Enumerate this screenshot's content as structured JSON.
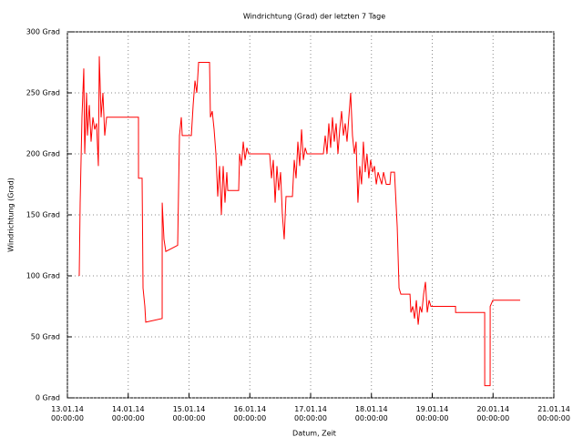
{
  "chart_data": {
    "type": "line",
    "title": "Windrichtung (Grad) der letzten 7 Tage",
    "xlabel": "Datum, Zeit",
    "ylabel": "Windrichtung (Grad)",
    "grid": true,
    "xlim": [
      "13.01.14 00:00:00",
      "21.01.14 00:00:00"
    ],
    "xticks": [
      "13.01.14 00:00:00",
      "14.01.14 00:00:00",
      "15.01.14 00:00:00",
      "16.01.14 00:00:00",
      "17.01.14 00:00:00",
      "18.01.14 00:00:00",
      "19.01.14 00:00:00",
      "20.01.14 00:00:00",
      "21.01.14 00:00:00"
    ],
    "ylim": [
      0,
      300
    ],
    "yticks": [
      {
        "value": 0,
        "label": "0 Grad"
      },
      {
        "value": 50,
        "label": "50 Grad"
      },
      {
        "value": 100,
        "label": "100 Grad"
      },
      {
        "value": 150,
        "label": "150 Grad"
      },
      {
        "value": 200,
        "label": "200 Grad"
      },
      {
        "value": 250,
        "label": "250 Grad"
      },
      {
        "value": 300,
        "label": "300 Grad"
      }
    ],
    "x": [
      "13.01.14 04:40:00",
      "13.01.14 05:02:00",
      "13.01.14 05:45:00",
      "13.01.14 06:28:00",
      "13.01.14 06:50:00",
      "13.01.14 07:33:00",
      "13.01.14 07:55:00",
      "13.01.14 08:38:00",
      "13.01.14 09:21:00",
      "13.01.14 10:04:00",
      "13.01.14 10:47:00",
      "13.01.14 11:30:00",
      "13.01.14 12:13:00",
      "13.01.14 12:35:00",
      "13.01.14 13:18:00",
      "13.01.14 14:01:00",
      "13.01.14 14:44:00",
      "13.01.14 15:28:00",
      "13.01.14 16:32:00",
      "14.01.14 04:03:00",
      "14.01.14 04:04:00",
      "14.01.14 05:29:00",
      "14.01.14 05:51:00",
      "14.01.14 06:34:00",
      "14.01.14 06:55:00",
      "14.01.14 13:24:00",
      "14.01.14 13:25:00",
      "14.01.14 14:07:00",
      "14.01.14 14:50:00",
      "14.01.14 19:31:00",
      "14.01.14 20:14:00",
      "14.01.14 20:57:00",
      "14.01.14 21:19:00",
      "15.01.14 00:55:00",
      "15.01.14 01:38:00",
      "15.01.14 02:21:00",
      "15.01.14 03:04:00",
      "15.01.14 03:47:00",
      "15.01.14 08:06:00",
      "15.01.14 08:27:00",
      "15.01.14 09:10:00",
      "15.01.14 09:54:00",
      "15.01.14 10:37:00",
      "15.01.14 11:20:00",
      "15.01.14 12:03:00",
      "15.01.14 12:46:00",
      "15.01.14 13:29:00",
      "15.01.14 14:12:00",
      "15.01.14 14:55:00",
      "15.01.14 15:17:00",
      "15.01.14 19:36:00",
      "15.01.14 19:58:00",
      "15.01.14 20:41:00",
      "15.01.14 21:24:00",
      "15.01.14 22:07:00",
      "15.01.14 22:50:00",
      "15.01.14 23:34:00",
      "16.01.14 07:50:00",
      "16.01.14 08:33:00",
      "16.01.14 09:16:00",
      "16.01.14 09:59:00",
      "16.01.14 10:42:00",
      "16.01.14 11:25:00",
      "16.01.14 12:08:00",
      "16.01.14 12:51:00",
      "16.01.14 13:34:00",
      "16.01.14 14:17:00",
      "16.01.14 16:49:00",
      "16.01.14 17:32:00",
      "16.01.14 18:15:00",
      "16.01.14 18:58:00",
      "16.01.14 19:41:00",
      "16.01.14 20:25:00",
      "16.01.14 21:08:00",
      "16.01.14 21:51:00",
      "16.01.14 22:34:00",
      "17.01.14 05:02:00",
      "17.01.14 05:45:00",
      "17.01.14 06:28:00",
      "17.01.14 07:11:00",
      "17.01.14 07:54:00",
      "17.01.14 08:37:00",
      "17.01.14 09:20:00",
      "17.01.14 10:04:00",
      "17.01.14 10:47:00",
      "17.01.14 11:30:00",
      "17.01.14 12:13:00",
      "17.01.14 12:56:00",
      "17.01.14 13:39:00",
      "17.01.14 14:22:00",
      "17.01.14 15:05:00",
      "17.01.14 15:48:00",
      "17.01.14 16:31:00",
      "17.01.14 17:14:00",
      "17.01.14 17:57:00",
      "17.01.14 18:40:00",
      "17.01.14 19:23:00",
      "17.01.14 20:06:00",
      "17.01.14 20:49:00",
      "17.01.14 21:32:00",
      "17.01.14 22:15:00",
      "17.01.14 22:58:00",
      "17.01.14 23:41:00",
      "18.01.14 00:28:00",
      "18.01.14 01:11:00",
      "18.01.14 01:55:00",
      "18.01.14 02:38:00",
      "18.01.14 03:21:00",
      "18.01.14 04:04:00",
      "18.01.14 04:47:00",
      "18.01.14 05:51:00",
      "18.01.14 07:18:00",
      "18.01.14 07:40:00",
      "18.01.14 09:06:00",
      "18.01.14 10:11:00",
      "18.01.14 10:54:00",
      "18.01.14 11:37:00",
      "18.01.14 15:13:00",
      "18.01.14 15:35:00",
      "18.01.14 16:18:00",
      "18.01.14 17:01:00",
      "18.01.14 17:44:00",
      "18.01.14 18:27:00",
      "18.01.14 19:10:00",
      "18.01.14 19:53:00",
      "18.01.14 20:36:00",
      "18.01.14 21:19:00",
      "18.01.14 22:02:00",
      "18.01.14 22:45:00",
      "18.01.14 23:28:00",
      "19.01.14 09:12:00",
      "19.01.14 09:13:00",
      "19.01.14 20:42:00",
      "19.01.14 20:43:00",
      "19.01.14 22:51:00",
      "19.01.14 22:52:00",
      "19.01.14 23:56:00",
      "20.01.14 10:43:00"
    ],
    "series": [
      {
        "color": "#ff0000",
        "values": [
          100,
          160,
          230,
          270,
          200,
          250,
          215,
          240,
          210,
          230,
          220,
          225,
          190,
          280,
          230,
          250,
          215,
          230,
          230,
          230,
          180,
          180,
          90,
          75,
          62,
          65,
          160,
          130,
          120,
          125,
          215,
          230,
          215,
          215,
          240,
          260,
          250,
          275,
          275,
          230,
          235,
          220,
          200,
          165,
          190,
          150,
          190,
          160,
          185,
          170,
          170,
          200,
          190,
          210,
          195,
          205,
          200,
          200,
          180,
          195,
          160,
          190,
          170,
          185,
          150,
          130,
          165,
          165,
          195,
          180,
          210,
          190,
          220,
          195,
          205,
          200,
          200,
          215,
          200,
          225,
          205,
          230,
          210,
          225,
          200,
          220,
          235,
          215,
          225,
          210,
          230,
          250,
          215,
          200,
          210,
          160,
          190,
          175,
          210,
          185,
          200,
          180,
          195,
          185,
          190,
          175,
          185,
          180,
          175,
          185,
          175,
          175,
          185,
          185,
          140,
          90,
          85,
          85,
          70,
          75,
          65,
          80,
          60,
          75,
          70,
          85,
          95,
          70,
          80,
          75,
          75,
          70,
          70,
          10,
          10,
          75,
          80,
          80
        ]
      }
    ]
  }
}
